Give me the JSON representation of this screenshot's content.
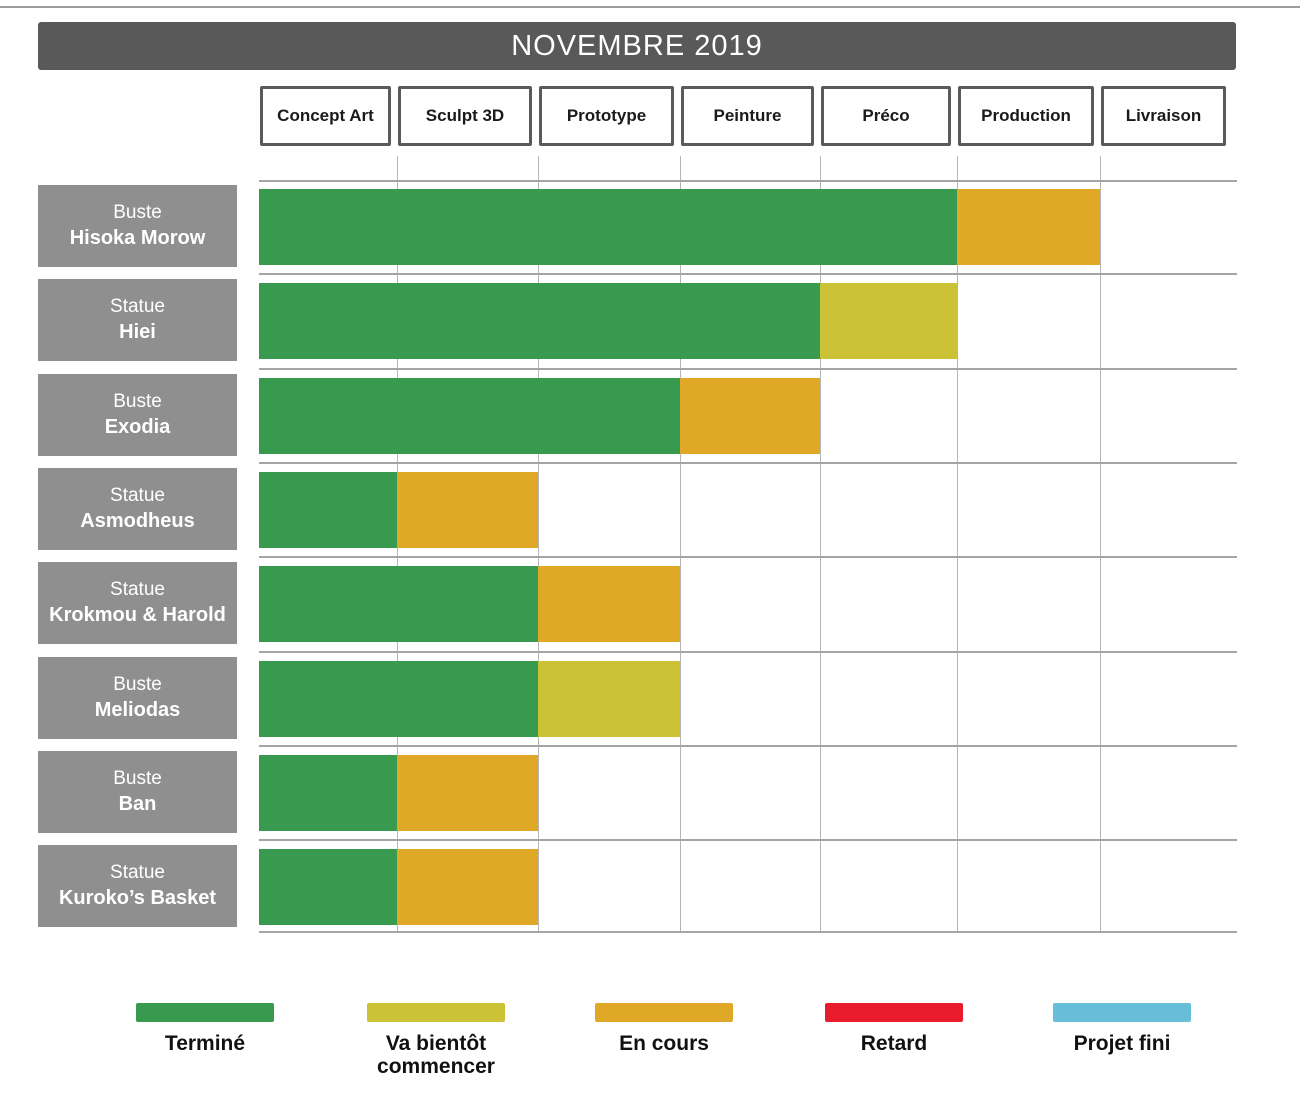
{
  "chart_data": {
    "type": "bar",
    "subtype": "gantt-status-grid",
    "title": "NOVEMBRE 2019",
    "columns": [
      "Concept Art",
      "Sculpt 3D",
      "Prototype",
      "Peinture",
      "Préco",
      "Production",
      "Livraison"
    ],
    "rows": [
      {
        "line1": "Buste",
        "line2": "Hisoka Morow",
        "segments": [
          {
            "status": "termine",
            "start": 0,
            "span": 5
          },
          {
            "status": "en_cours",
            "start": 5,
            "span": 1
          }
        ]
      },
      {
        "line1": "Statue",
        "line2": "Hiei",
        "segments": [
          {
            "status": "termine",
            "start": 0,
            "span": 4
          },
          {
            "status": "va_bientot",
            "start": 4,
            "span": 1
          }
        ]
      },
      {
        "line1": "Buste",
        "line2": "Exodia",
        "segments": [
          {
            "status": "termine",
            "start": 0,
            "span": 3
          },
          {
            "status": "en_cours",
            "start": 3,
            "span": 1
          }
        ]
      },
      {
        "line1": "Statue",
        "line2": "Asmodheus",
        "segments": [
          {
            "status": "termine",
            "start": 0,
            "span": 1
          },
          {
            "status": "en_cours",
            "start": 1,
            "span": 1
          }
        ]
      },
      {
        "line1": "Statue",
        "line2": "Krokmou & Harold",
        "segments": [
          {
            "status": "termine",
            "start": 0,
            "span": 2
          },
          {
            "status": "en_cours",
            "start": 2,
            "span": 1
          }
        ]
      },
      {
        "line1": "Buste",
        "line2": "Meliodas",
        "segments": [
          {
            "status": "termine",
            "start": 0,
            "span": 2
          },
          {
            "status": "va_bientot",
            "start": 2,
            "span": 1
          }
        ]
      },
      {
        "line1": "Buste",
        "line2": "Ban",
        "segments": [
          {
            "status": "termine",
            "start": 0,
            "span": 1
          },
          {
            "status": "en_cours",
            "start": 1,
            "span": 1
          }
        ]
      },
      {
        "line1": "Statue",
        "line2": "Kuroko’s Basket",
        "segments": [
          {
            "status": "termine",
            "start": 0,
            "span": 1
          },
          {
            "status": "en_cours",
            "start": 1,
            "span": 1
          }
        ]
      }
    ],
    "status_colors": {
      "termine": "#389a4e",
      "va_bientot": "#cbc235",
      "en_cours": "#e0a827",
      "retard": "#e91c2d",
      "projet_fini": "#66bed9"
    },
    "legend": [
      {
        "label": "Terminé",
        "status": "termine",
        "color": "#389a4e"
      },
      {
        "label": "Va bientôt commencer",
        "status": "va_bientot",
        "color": "#cbc235"
      },
      {
        "label": "En cours",
        "status": "en_cours",
        "color": "#e0a827"
      },
      {
        "label": "Retard",
        "status": "retard",
        "color": "#e91c2d"
      },
      {
        "label": "Projet fini",
        "status": "projet_fini",
        "color": "#66bed9"
      }
    ],
    "layout_hints": {
      "legend_position": "bottom",
      "grid": true,
      "title_position": "top"
    }
  }
}
